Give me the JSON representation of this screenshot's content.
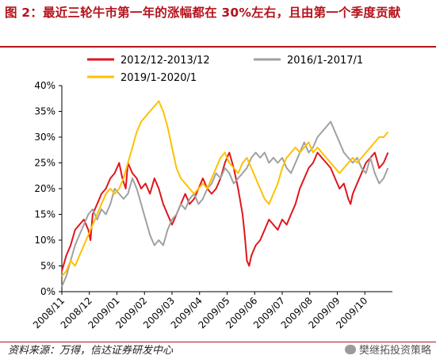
{
  "title": "图 2：最近三轮牛市第一年的涨幅都在 30%左右，且由第一个季度贡献",
  "source": "资料来源：万得，信达证券研发中心",
  "watermark": "樊继拓投资策略",
  "chart_data": {
    "type": "line",
    "ylim": [
      0,
      40
    ],
    "yticks": [
      "0%",
      "5%",
      "10%",
      "15%",
      "20%",
      "25%",
      "30%",
      "35%",
      "40%"
    ],
    "xlim": [
      0,
      300
    ],
    "xticklabels": [
      "2008/11",
      "2008/12",
      "2009/01",
      "2009/02",
      "2009/03",
      "2009/04",
      "2009/05",
      "2009/06",
      "2009/07",
      "2009/08",
      "2009/09",
      "2009/10"
    ],
    "xticks": [
      0,
      25,
      50,
      75,
      100,
      125,
      150,
      175,
      200,
      225,
      250,
      275
    ],
    "legend": "top",
    "colors": {
      "red": "#e0161b",
      "gray": "#a0a0a0",
      "yellow": "#ffc000"
    },
    "series": [
      {
        "name": "2012/12-2013/12",
        "color": "#e0161b",
        "points": [
          [
            0,
            4
          ],
          [
            4,
            7
          ],
          [
            8,
            9
          ],
          [
            12,
            12
          ],
          [
            16,
            13
          ],
          [
            20,
            14
          ],
          [
            24,
            12
          ],
          [
            26,
            10
          ],
          [
            28,
            15
          ],
          [
            32,
            17
          ],
          [
            36,
            19
          ],
          [
            40,
            20
          ],
          [
            44,
            22
          ],
          [
            48,
            23
          ],
          [
            52,
            25
          ],
          [
            55,
            22
          ],
          [
            58,
            20
          ],
          [
            60,
            25
          ],
          [
            64,
            23
          ],
          [
            68,
            22
          ],
          [
            72,
            20
          ],
          [
            76,
            21
          ],
          [
            80,
            19
          ],
          [
            84,
            22
          ],
          [
            88,
            20
          ],
          [
            92,
            17
          ],
          [
            96,
            15
          ],
          [
            100,
            13
          ],
          [
            104,
            15
          ],
          [
            108,
            17
          ],
          [
            112,
            19
          ],
          [
            116,
            17
          ],
          [
            120,
            18
          ],
          [
            124,
            20
          ],
          [
            128,
            22
          ],
          [
            132,
            20
          ],
          [
            136,
            19
          ],
          [
            140,
            20
          ],
          [
            144,
            22
          ],
          [
            148,
            25
          ],
          [
            152,
            27
          ],
          [
            156,
            24
          ],
          [
            160,
            20
          ],
          [
            164,
            15
          ],
          [
            166,
            11
          ],
          [
            168,
            6
          ],
          [
            170,
            5
          ],
          [
            172,
            7
          ],
          [
            176,
            9
          ],
          [
            180,
            10
          ],
          [
            184,
            12
          ],
          [
            188,
            14
          ],
          [
            192,
            13
          ],
          [
            196,
            12
          ],
          [
            198,
            13
          ],
          [
            200,
            14
          ],
          [
            204,
            13
          ],
          [
            208,
            15
          ],
          [
            212,
            17
          ],
          [
            216,
            20
          ],
          [
            220,
            22
          ],
          [
            224,
            24
          ],
          [
            228,
            25
          ],
          [
            232,
            27
          ],
          [
            236,
            26
          ],
          [
            240,
            25
          ],
          [
            244,
            24
          ],
          [
            248,
            22
          ],
          [
            252,
            20
          ],
          [
            256,
            21
          ],
          [
            260,
            18
          ],
          [
            262,
            17
          ],
          [
            264,
            19
          ],
          [
            268,
            21
          ],
          [
            272,
            23
          ],
          [
            276,
            25
          ],
          [
            280,
            26
          ],
          [
            284,
            27
          ],
          [
            288,
            24
          ],
          [
            292,
            25
          ],
          [
            296,
            27
          ]
        ]
      },
      {
        "name": "2016/1-2017/1",
        "color": "#a0a0a0",
        "points": [
          [
            0,
            1
          ],
          [
            4,
            3
          ],
          [
            8,
            6
          ],
          [
            12,
            9
          ],
          [
            16,
            11
          ],
          [
            20,
            13
          ],
          [
            24,
            15
          ],
          [
            28,
            16
          ],
          [
            32,
            14
          ],
          [
            36,
            16
          ],
          [
            40,
            15
          ],
          [
            44,
            17
          ],
          [
            48,
            20
          ],
          [
            52,
            19
          ],
          [
            56,
            18
          ],
          [
            60,
            19
          ],
          [
            64,
            22
          ],
          [
            68,
            20
          ],
          [
            72,
            17
          ],
          [
            76,
            14
          ],
          [
            80,
            11
          ],
          [
            84,
            9
          ],
          [
            88,
            10
          ],
          [
            92,
            9
          ],
          [
            96,
            12
          ],
          [
            100,
            14
          ],
          [
            104,
            15
          ],
          [
            108,
            17
          ],
          [
            112,
            16
          ],
          [
            116,
            18
          ],
          [
            120,
            19
          ],
          [
            124,
            17
          ],
          [
            128,
            18
          ],
          [
            132,
            20
          ],
          [
            136,
            21
          ],
          [
            140,
            23
          ],
          [
            144,
            22
          ],
          [
            148,
            24
          ],
          [
            152,
            23
          ],
          [
            156,
            21
          ],
          [
            160,
            22
          ],
          [
            164,
            23
          ],
          [
            168,
            24
          ],
          [
            172,
            26
          ],
          [
            176,
            27
          ],
          [
            180,
            26
          ],
          [
            184,
            27
          ],
          [
            188,
            25
          ],
          [
            192,
            26
          ],
          [
            196,
            25
          ],
          [
            200,
            26
          ],
          [
            204,
            24
          ],
          [
            208,
            23
          ],
          [
            212,
            25
          ],
          [
            216,
            27
          ],
          [
            220,
            29
          ],
          [
            224,
            27
          ],
          [
            228,
            28
          ],
          [
            232,
            30
          ],
          [
            236,
            31
          ],
          [
            240,
            32
          ],
          [
            244,
            33
          ],
          [
            248,
            31
          ],
          [
            252,
            29
          ],
          [
            256,
            27
          ],
          [
            260,
            26
          ],
          [
            264,
            25
          ],
          [
            268,
            26
          ],
          [
            272,
            24
          ],
          [
            276,
            23
          ],
          [
            280,
            26
          ],
          [
            284,
            23
          ],
          [
            288,
            21
          ],
          [
            292,
            22
          ],
          [
            296,
            24
          ]
        ]
      },
      {
        "name": "2019/1-2020/1",
        "color": "#ffc000",
        "points": [
          [
            0,
            3
          ],
          [
            4,
            4
          ],
          [
            8,
            6
          ],
          [
            12,
            5
          ],
          [
            16,
            7
          ],
          [
            20,
            9
          ],
          [
            24,
            11
          ],
          [
            28,
            13
          ],
          [
            32,
            15
          ],
          [
            36,
            17
          ],
          [
            40,
            19
          ],
          [
            44,
            20
          ],
          [
            48,
            19
          ],
          [
            52,
            20
          ],
          [
            56,
            22
          ],
          [
            60,
            25
          ],
          [
            64,
            28
          ],
          [
            68,
            31
          ],
          [
            72,
            33
          ],
          [
            76,
            34
          ],
          [
            80,
            35
          ],
          [
            84,
            36
          ],
          [
            88,
            37
          ],
          [
            92,
            35
          ],
          [
            96,
            32
          ],
          [
            100,
            28
          ],
          [
            104,
            24
          ],
          [
            108,
            22
          ],
          [
            112,
            21
          ],
          [
            116,
            20
          ],
          [
            120,
            19
          ],
          [
            124,
            20
          ],
          [
            128,
            21
          ],
          [
            132,
            20
          ],
          [
            136,
            22
          ],
          [
            140,
            24
          ],
          [
            144,
            26
          ],
          [
            148,
            27
          ],
          [
            152,
            25
          ],
          [
            156,
            24
          ],
          [
            160,
            23
          ],
          [
            164,
            25
          ],
          [
            168,
            26
          ],
          [
            172,
            24
          ],
          [
            176,
            22
          ],
          [
            180,
            20
          ],
          [
            184,
            18
          ],
          [
            188,
            17
          ],
          [
            192,
            19
          ],
          [
            196,
            21
          ],
          [
            200,
            24
          ],
          [
            204,
            26
          ],
          [
            208,
            27
          ],
          [
            212,
            28
          ],
          [
            216,
            27
          ],
          [
            220,
            28
          ],
          [
            224,
            29
          ],
          [
            228,
            27
          ],
          [
            232,
            28
          ],
          [
            236,
            27
          ],
          [
            240,
            26
          ],
          [
            244,
            25
          ],
          [
            248,
            24
          ],
          [
            252,
            23
          ],
          [
            256,
            24
          ],
          [
            260,
            25
          ],
          [
            264,
            26
          ],
          [
            268,
            25
          ],
          [
            272,
            26
          ],
          [
            276,
            27
          ],
          [
            280,
            28
          ],
          [
            284,
            29
          ],
          [
            288,
            30
          ],
          [
            292,
            30
          ],
          [
            296,
            31
          ]
        ]
      }
    ]
  }
}
